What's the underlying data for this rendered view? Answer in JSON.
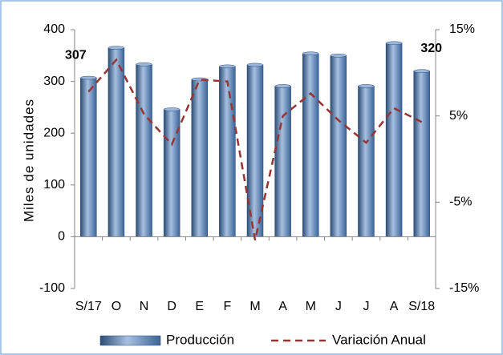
{
  "chart_data": {
    "type": "bar_line",
    "y_label": "Miles de unidades",
    "categories": [
      "S/17",
      "O",
      "N",
      "D",
      "E",
      "F",
      "M",
      "A",
      "M",
      "J",
      "J",
      "A",
      "S/18"
    ],
    "series": [
      {
        "name": "Producción",
        "type": "bar",
        "color": "#4f81bd",
        "values": [
          307,
          365,
          333,
          246,
          304,
          329,
          332,
          291,
          354,
          350,
          291,
          374,
          320
        ],
        "value_labels": [
          "307",
          null,
          null,
          null,
          null,
          null,
          null,
          null,
          null,
          null,
          null,
          null,
          "320"
        ]
      },
      {
        "name": "Variación Anual",
        "type": "line",
        "axis": "y2",
        "color": "#943634",
        "dash": true,
        "values": [
          7.8,
          11.5,
          5.2,
          1.7,
          9.2,
          9.0,
          -9.4,
          5.0,
          7.6,
          4.5,
          1.9,
          5.9,
          4.3
        ]
      }
    ],
    "ylim": [
      -100,
      400
    ],
    "yticks": [
      -100,
      0,
      100,
      200,
      300,
      400
    ],
    "y2lim": [
      -15,
      15
    ],
    "y2ticks": [
      {
        "value": -15,
        "label": "-15%"
      },
      {
        "value": -5,
        "label": "-5%"
      },
      {
        "value": 5,
        "label": "5%"
      },
      {
        "value": 15,
        "label": "15%"
      }
    ],
    "legend": "bottom"
  }
}
